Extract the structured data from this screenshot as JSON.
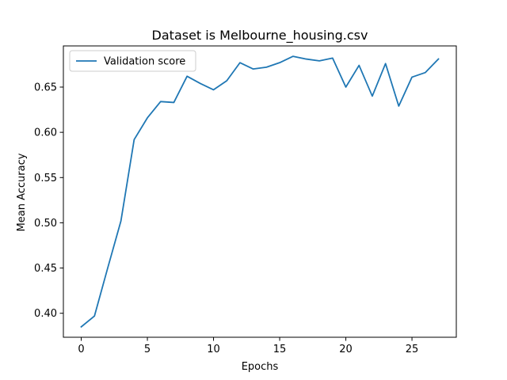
{
  "chart_data": {
    "type": "line",
    "title": "Dataset is Melbourne_housing.csv",
    "xlabel": "Epochs",
    "ylabel": "Mean Accuracy",
    "xlim": [
      -1.35,
      28.35
    ],
    "ylim": [
      0.3735,
      0.6955
    ],
    "xticks": [
      0,
      5,
      10,
      15,
      20,
      25
    ],
    "yticks": [
      0.4,
      0.45,
      0.5,
      0.55,
      0.6,
      0.65
    ],
    "ytick_labels": [
      "0.40",
      "0.45",
      "0.50",
      "0.55",
      "0.60",
      "0.65"
    ],
    "grid": false,
    "legend_position": "upper-left",
    "series": [
      {
        "name": "Validation score",
        "color": "#1f77b4",
        "x": [
          0,
          1,
          2,
          3,
          4,
          5,
          6,
          7,
          8,
          9,
          10,
          11,
          12,
          13,
          14,
          15,
          16,
          17,
          18,
          19,
          20,
          21,
          22,
          23,
          24,
          25,
          26,
          27
        ],
        "y": [
          0.385,
          0.397,
          0.45,
          0.502,
          0.592,
          0.616,
          0.634,
          0.633,
          0.662,
          0.654,
          0.647,
          0.657,
          0.677,
          0.67,
          0.672,
          0.677,
          0.684,
          0.681,
          0.679,
          0.682,
          0.65,
          0.674,
          0.64,
          0.676,
          0.629,
          0.661,
          0.666,
          0.681
        ]
      }
    ]
  }
}
